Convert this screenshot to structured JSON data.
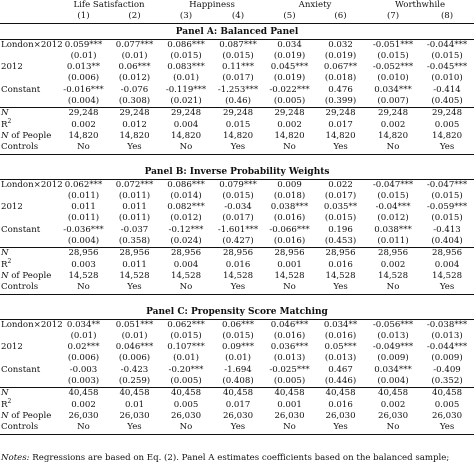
{
  "header": {
    "groups": [
      "Life Satisfaction",
      "Happiness",
      "Anxiety",
      "Worthwhile"
    ],
    "columns": [
      "(1)",
      "(2)",
      "(3)",
      "(4)",
      "(5)",
      "(6)",
      "(7)",
      "(8)"
    ]
  },
  "panels": [
    {
      "title": "Panel A: Balanced Panel",
      "rows": [
        {
          "label": "London×2012",
          "values": [
            "0.059***",
            "0.077***",
            "0.086***",
            "0.087***",
            "0.034",
            "0.032",
            "-0.051***",
            "-0.044***"
          ]
        },
        {
          "label": "",
          "values": [
            "(0.01)",
            "(0.01)",
            "(0.015)",
            "(0.015)",
            "(0.019)",
            "(0.019)",
            "(0.015)",
            "(0.015)"
          ]
        },
        {
          "label": "2012",
          "values": [
            "0.013**",
            "0.06***",
            "0.083***",
            "0.11***",
            "0.045***",
            "0.067**",
            "-0.052***",
            "-0.045***"
          ]
        },
        {
          "label": "",
          "values": [
            "(0.006)",
            "(0.012)",
            "(0.01)",
            "(0.017)",
            "(0.019)",
            "(0.018)",
            "(0.010)",
            "(0.010)"
          ]
        },
        {
          "label": "Constant",
          "values": [
            "-0.016***",
            "-0.076",
            "-0.119***",
            "-1.253***",
            "-0.022***",
            "0.476",
            "0.034***",
            "-0.414"
          ]
        },
        {
          "label": "",
          "values": [
            "(0.004)",
            "(0.308)",
            "(0.021)",
            "(0.46)",
            "(0.005)",
            "(0.399)",
            "(0.007)",
            "(0.405)"
          ]
        }
      ],
      "stats": [
        {
          "label": "N",
          "values": [
            "29,248",
            "29,248",
            "29,248",
            "29,248",
            "29,248",
            "29,248",
            "29,248",
            "29,248"
          ]
        },
        {
          "label": "R2",
          "values": [
            "0.002",
            "0.012",
            "0.004",
            "0.015",
            "0.002",
            "0.017",
            "0.002",
            "0.005"
          ]
        },
        {
          "label": "N of People",
          "values": [
            "14,820",
            "14,820",
            "14,820",
            "14,820",
            "14,820",
            "14,820",
            "14,820",
            "14,820"
          ]
        },
        {
          "label": "Controls",
          "values": [
            "No",
            "Yes",
            "No",
            "Yes",
            "No",
            "Yes",
            "No",
            "Yes"
          ]
        }
      ]
    },
    {
      "title": "Panel B: Inverse Probability Weights",
      "rows": [
        {
          "label": "London×2012",
          "values": [
            "0.062***",
            "0.072***",
            "0.086***",
            "0.079***",
            "0.009",
            "0.022",
            "-0.047***",
            "-0.047***"
          ]
        },
        {
          "label": "",
          "values": [
            "(0.011)",
            "(0.011)",
            "(0.014)",
            "(0.015)",
            "(0.018)",
            "(0.017)",
            "(0.015)",
            "(0.015)"
          ]
        },
        {
          "label": "2012",
          "values": [
            "0.011",
            "0.011",
            "0.082***",
            "-0.034",
            "0.038***",
            "0.035**",
            "-0.04***",
            "-0.059***"
          ]
        },
        {
          "label": "",
          "values": [
            "(0.011)",
            "(0.011)",
            "(0.012)",
            "(0.017)",
            "(0.016)",
            "(0.015)",
            "(0.012)",
            "(0.015)"
          ]
        },
        {
          "label": "Constant",
          "values": [
            "-0.036***",
            "-0.037",
            "-0.12***",
            "-1.601***",
            "-0.066***",
            "0.196",
            "0.038***",
            "-0.413"
          ]
        },
        {
          "label": "",
          "values": [
            "(0.004)",
            "(0.358)",
            "(0.024)",
            "(0.427)",
            "(0.016)",
            "(0.453)",
            "(0.011)",
            "(0.404)"
          ]
        }
      ],
      "stats": [
        {
          "label": "N",
          "values": [
            "28,956",
            "28,956",
            "28,956",
            "28,956",
            "28,956",
            "28,956",
            "28,956",
            "28,956"
          ]
        },
        {
          "label": "R2",
          "values": [
            "0.003",
            "0.011",
            "0.004",
            "0.016",
            "0.001",
            "0.016",
            "0.002",
            "0.004"
          ]
        },
        {
          "label": "N of People",
          "values": [
            "14,528",
            "14,528",
            "14,528",
            "14,528",
            "14,528",
            "14,528",
            "14,528",
            "14,528"
          ]
        },
        {
          "label": "Controls",
          "values": [
            "No",
            "Yes",
            "No",
            "Yes",
            "No",
            "Yes",
            "No",
            "Yes"
          ]
        }
      ]
    },
    {
      "title": "Panel C: Propensity Score Matching",
      "rows": [
        {
          "label": "London×2012",
          "values": [
            "0.034**",
            "0.051***",
            "0.062***",
            "0.06***",
            "0.046***",
            "0.034**",
            "-0.056***",
            "-0.038***"
          ]
        },
        {
          "label": "",
          "values": [
            "(0.01)",
            "(0.01)",
            "(0.015)",
            "(0.015)",
            "(0.016)",
            "(0.016)",
            "(0.013)",
            "(0.013)"
          ]
        },
        {
          "label": "2012",
          "values": [
            "0.02***",
            "0.046***",
            "0.107***",
            "0.09***",
            "0.036***",
            "0.05***",
            "-0.049***",
            "-0.044***"
          ]
        },
        {
          "label": "",
          "values": [
            "(0.006)",
            "(0.006)",
            "(0.01)",
            "(0.01)",
            "(0.013)",
            "(0.013)",
            "(0.009)",
            "(0.009)"
          ]
        },
        {
          "label": "Constant",
          "values": [
            "-0.003",
            "-0.423",
            "-0.20***",
            "-1.694",
            "-0.025***",
            "0.467",
            "0.034***",
            "-0.409"
          ]
        },
        {
          "label": "",
          "values": [
            "(0.003)",
            "(0.259)",
            "(0.005)",
            "(0.408)",
            "(0.005)",
            "(0.446)",
            "(0.004)",
            "(0.352)"
          ]
        }
      ],
      "stats": [
        {
          "label": "N",
          "values": [
            "40,458",
            "40,458",
            "40,458",
            "40,458",
            "40,458",
            "40,458",
            "40,458",
            "40,458"
          ]
        },
        {
          "label": "R2",
          "values": [
            "0.002",
            "0.01",
            "0.005",
            "0.017",
            "0.001",
            "0.016",
            "0.002",
            "0.005"
          ]
        },
        {
          "label": "N of People",
          "values": [
            "26,030",
            "26,030",
            "26,030",
            "26,030",
            "26,030",
            "26,030",
            "26,030",
            "26,030"
          ]
        },
        {
          "label": "Controls",
          "values": [
            "No",
            "Yes",
            "No",
            "Yes",
            "No",
            "Yes",
            "No",
            "Yes"
          ]
        }
      ]
    }
  ],
  "notes": {
    "prefix": "Notes:",
    "text": "Regressions are based on Eq. (2). Panel A estimates coefficients based on the balanced sample;"
  }
}
